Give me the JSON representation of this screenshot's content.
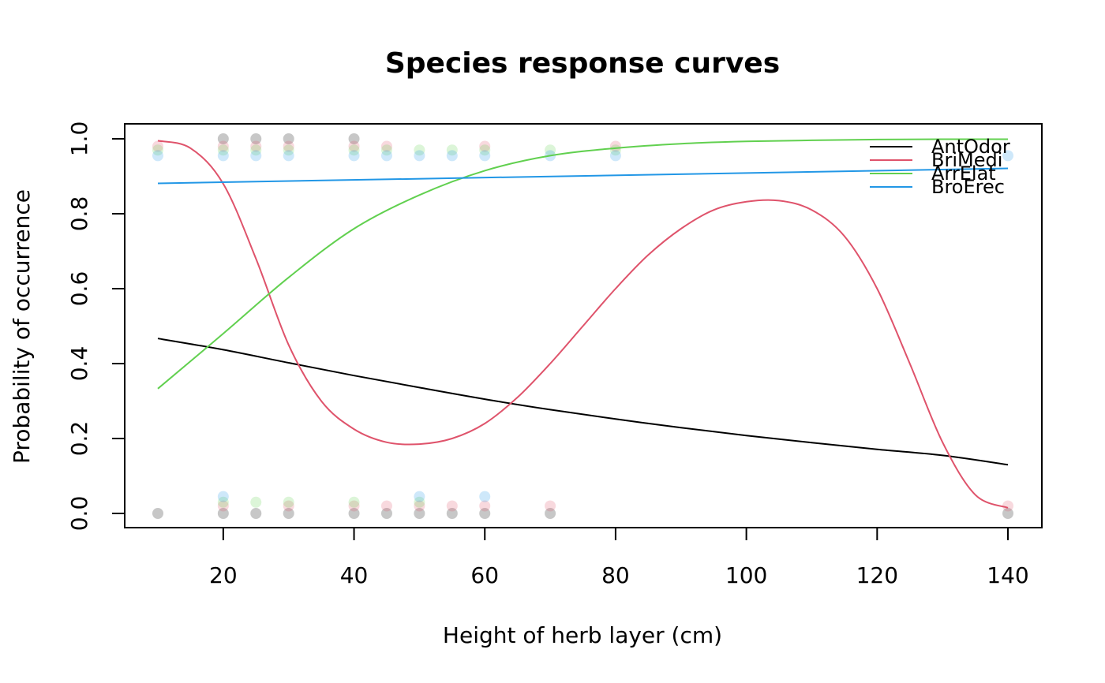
{
  "chart_data": {
    "type": "line",
    "title": "Species response curves",
    "xlabel": "Height of herb layer (cm)",
    "ylabel": "Probability of occurrence",
    "xlim": [
      10,
      140
    ],
    "ylim": [
      0,
      1
    ],
    "x_ticks": [
      20,
      40,
      60,
      80,
      100,
      120,
      140
    ],
    "x_tick_labels": [
      "20",
      "40",
      "60",
      "80",
      "100",
      "120",
      "140"
    ],
    "y_ticks": [
      0,
      0.2,
      0.4,
      0.6,
      0.8,
      1.0
    ],
    "y_tick_labels": [
      "0.0",
      "0.2",
      "0.4",
      "0.6",
      "0.8",
      "1.0"
    ],
    "grid": false,
    "legend_position": "top-right",
    "series": [
      {
        "name": "AntOdor",
        "color": "#000000",
        "x": [
          10,
          20,
          30,
          40,
          50,
          60,
          70,
          80,
          90,
          100,
          110,
          120,
          130,
          140
        ],
        "y": [
          0.467,
          0.437,
          0.402,
          0.368,
          0.336,
          0.305,
          0.277,
          0.252,
          0.229,
          0.208,
          0.189,
          0.171,
          0.155,
          0.13
        ],
        "presence_x": [
          20,
          25,
          30,
          40
        ],
        "absence_x": [
          10,
          20,
          25,
          30,
          40,
          45,
          50,
          55,
          60,
          70,
          140
        ]
      },
      {
        "name": "BriMedi",
        "color": "#DF536B",
        "x": [
          10,
          15,
          20,
          25,
          30,
          35,
          40,
          45,
          50,
          55,
          60,
          65,
          70,
          75,
          80,
          85,
          90,
          95,
          100,
          105,
          110,
          115,
          120,
          125,
          130,
          135,
          140
        ],
        "y": [
          0.995,
          0.975,
          0.88,
          0.68,
          0.45,
          0.3,
          0.225,
          0.19,
          0.185,
          0.2,
          0.24,
          0.31,
          0.4,
          0.5,
          0.6,
          0.69,
          0.76,
          0.81,
          0.832,
          0.835,
          0.81,
          0.74,
          0.6,
          0.4,
          0.19,
          0.05,
          0.015
        ],
        "presence_x": [
          10,
          20,
          25,
          30,
          40,
          45,
          60,
          80
        ],
        "absence_x": [
          20,
          30,
          40,
          45,
          50,
          55,
          60,
          70,
          140
        ]
      },
      {
        "name": "ArrElat",
        "color": "#61D04F",
        "x": [
          10,
          20,
          30,
          40,
          50,
          60,
          70,
          80,
          90,
          100,
          110,
          120,
          130,
          140
        ],
        "y": [
          0.333,
          0.48,
          0.63,
          0.76,
          0.85,
          0.915,
          0.955,
          0.975,
          0.987,
          0.993,
          0.996,
          0.998,
          0.999,
          0.999
        ],
        "presence_x": [
          10,
          20,
          25,
          30,
          40,
          45,
          50,
          55,
          60,
          70,
          80
        ],
        "absence_x": [
          20,
          25,
          30,
          40,
          50
        ]
      },
      {
        "name": "BroErec",
        "color": "#2297E6",
        "x": [
          10,
          140
        ],
        "y": [
          0.881,
          0.921
        ],
        "presence_x": [
          10,
          20,
          25,
          30,
          40,
          45,
          50,
          55,
          60,
          70,
          80,
          140
        ],
        "absence_x": [
          20,
          50,
          60
        ]
      }
    ]
  }
}
